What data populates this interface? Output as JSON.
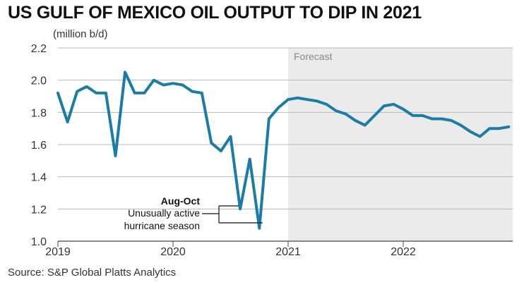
{
  "chart_data": {
    "type": "line",
    "title": "US GULF OF MEXICO OIL OUTPUT TO DIP IN 2021",
    "ylabel": "(million b/d)",
    "source": "Source: S&P Global Platts Analytics",
    "ylim": [
      1.0,
      2.2
    ],
    "y_ticks": [
      "1.0",
      "1.2",
      "1.4",
      "1.6",
      "1.8",
      "2.0",
      "2.2"
    ],
    "x_ticks": [
      "2019",
      "2020",
      "2021",
      "2022"
    ],
    "grid": true,
    "forecast": {
      "label": "Forecast",
      "start": "2021-01"
    },
    "series": [
      {
        "color": "#1a7ca8",
        "x": [
          "2019-01",
          "2019-02",
          "2019-03",
          "2019-04",
          "2019-05",
          "2019-06",
          "2019-07",
          "2019-08",
          "2019-09",
          "2019-10",
          "2019-11",
          "2019-12",
          "2020-01",
          "2020-02",
          "2020-03",
          "2020-04",
          "2020-05",
          "2020-06",
          "2020-07",
          "2020-08",
          "2020-09",
          "2020-10",
          "2020-11",
          "2020-12",
          "2021-01",
          "2021-02",
          "2021-03",
          "2021-04",
          "2021-05",
          "2021-06",
          "2021-07",
          "2021-08",
          "2021-09",
          "2021-10",
          "2021-11",
          "2021-12",
          "2022-01",
          "2022-02",
          "2022-03",
          "2022-04",
          "2022-05",
          "2022-06",
          "2022-07",
          "2022-08",
          "2022-09",
          "2022-10",
          "2022-11",
          "2022-12"
        ],
        "values": [
          1.92,
          1.74,
          1.93,
          1.96,
          1.92,
          1.92,
          1.53,
          2.05,
          1.92,
          1.92,
          2.0,
          1.97,
          1.98,
          1.97,
          1.93,
          1.92,
          1.61,
          1.56,
          1.65,
          1.2,
          1.51,
          1.08,
          1.76,
          1.83,
          1.88,
          1.89,
          1.88,
          1.87,
          1.85,
          1.81,
          1.79,
          1.75,
          1.72,
          1.78,
          1.84,
          1.85,
          1.82,
          1.78,
          1.78,
          1.76,
          1.76,
          1.75,
          1.72,
          1.68,
          1.65,
          1.7,
          1.7,
          1.71
        ]
      }
    ],
    "annotation": {
      "bold": "Aug-Oct",
      "line1": "Unusually active",
      "line2": "hurricane season"
    }
  }
}
